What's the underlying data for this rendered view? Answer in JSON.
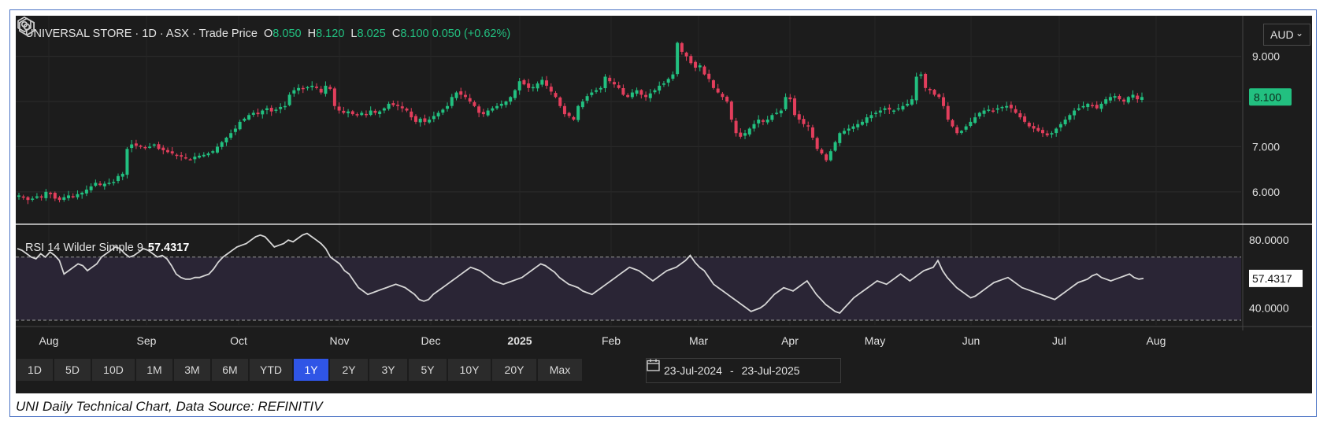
{
  "legend": {
    "symbol": "UNIVERSAL STORE",
    "interval": "1D",
    "exchange": "ASX",
    "price_type": "Trade Price",
    "o_label": "O",
    "o": "8.050",
    "h_label": "H",
    "h": "8.120",
    "l_label": "L",
    "l": "8.025",
    "c_label": "C",
    "c": "8.100",
    "change": "0.050",
    "change_pct": "(+0.62%)"
  },
  "currency": "AUD",
  "last_price_label": "8.100",
  "rsi_legend": {
    "name": "RSI 14 Wilder Simple 9",
    "value": "57.4317"
  },
  "rsi_last_label": "57.4317",
  "colors": {
    "up": "#22c080",
    "down": "#e23e5c",
    "background": "#1c1c1c",
    "active": "#2f55e6"
  },
  "timeframes": [
    "1D",
    "5D",
    "10D",
    "1M",
    "3M",
    "6M",
    "YTD",
    "1Y",
    "2Y",
    "3Y",
    "5Y",
    "10Y",
    "20Y",
    "Max"
  ],
  "active_timeframe": "1Y",
  "date_range": {
    "from": "23-Jul-2024",
    "sep": "-",
    "to": "23-Jul-2025"
  },
  "caption": "UNI Daily Technical Chart, Data Source: REFINITIV",
  "chart_data": [
    {
      "type": "candlestick",
      "x_labels": [
        "Aug",
        "Sep",
        "Oct",
        "Nov",
        "Dec",
        "2025",
        "Feb",
        "Mar",
        "Apr",
        "May",
        "Jun",
        "Jul",
        "Aug"
      ],
      "y_ticks": [
        "6.000",
        "7.000",
        "8.000",
        "9.000"
      ],
      "ylim": [
        5.3,
        9.9
      ],
      "close": [
        5.92,
        5.88,
        5.82,
        5.85,
        5.9,
        5.88,
        6.0,
        5.95,
        5.85,
        5.82,
        5.88,
        5.92,
        5.9,
        5.95,
        5.98,
        6.05,
        6.12,
        6.2,
        6.15,
        6.18,
        6.2,
        6.22,
        6.35,
        6.4,
        6.95,
        7.05,
        7.02,
        7.0,
        6.98,
        7.0,
        7.05,
        6.95,
        6.92,
        6.88,
        6.85,
        6.8,
        6.78,
        6.75,
        6.72,
        6.78,
        6.8,
        6.82,
        6.85,
        6.9,
        7.0,
        7.1,
        7.2,
        7.3,
        7.4,
        7.55,
        7.62,
        7.7,
        7.75,
        7.72,
        7.8,
        7.85,
        7.78,
        7.82,
        7.88,
        7.9,
        8.15,
        8.25,
        8.3,
        8.28,
        8.32,
        8.35,
        8.3,
        8.2,
        8.35,
        8.28,
        7.9,
        7.8,
        7.75,
        7.78,
        7.72,
        7.7,
        7.75,
        7.7,
        7.8,
        7.75,
        7.78,
        7.85,
        7.95,
        7.92,
        7.9,
        7.85,
        7.8,
        7.65,
        7.55,
        7.62,
        7.55,
        7.6,
        7.68,
        7.75,
        7.82,
        7.9,
        8.1,
        8.2,
        8.15,
        8.1,
        8.0,
        7.9,
        7.75,
        7.72,
        7.8,
        7.85,
        7.9,
        7.95,
        8.0,
        8.1,
        8.25,
        8.45,
        8.38,
        8.3,
        8.32,
        8.4,
        8.48,
        8.35,
        8.22,
        8.1,
        7.9,
        7.72,
        7.68,
        7.6,
        7.9,
        8.0,
        8.12,
        8.2,
        8.25,
        8.3,
        8.55,
        8.45,
        8.38,
        8.3,
        8.15,
        8.1,
        8.2,
        8.25,
        8.15,
        8.1,
        8.18,
        8.25,
        8.35,
        8.4,
        8.5,
        8.6,
        9.3,
        9.1,
        9.0,
        8.85,
        8.75,
        8.8,
        8.6,
        8.5,
        8.3,
        8.2,
        8.1,
        8.0,
        7.6,
        7.3,
        7.22,
        7.3,
        7.4,
        7.5,
        7.6,
        7.55,
        7.6,
        7.7,
        7.75,
        7.8,
        8.1,
        8.05,
        7.7,
        7.6,
        7.5,
        7.45,
        7.2,
        6.95,
        6.85,
        6.7,
        6.9,
        7.1,
        7.3,
        7.35,
        7.4,
        7.45,
        7.5,
        7.55,
        7.65,
        7.7,
        7.75,
        7.8,
        7.85,
        7.82,
        7.8,
        7.85,
        7.9,
        7.95,
        8.05,
        8.55,
        8.6,
        8.3,
        8.25,
        8.15,
        8.1,
        7.9,
        7.6,
        7.45,
        7.3,
        7.35,
        7.45,
        7.55,
        7.65,
        7.75,
        7.8,
        7.82,
        7.8,
        7.85,
        7.88,
        7.9,
        7.85,
        7.75,
        7.65,
        7.55,
        7.45,
        7.4,
        7.35,
        7.3,
        7.25,
        7.3,
        7.4,
        7.5,
        7.6,
        7.7,
        7.8,
        7.85,
        7.9,
        7.95,
        7.9,
        7.85,
        7.95,
        8.05,
        8.1,
        8.12,
        8.05,
        8.0,
        8.1,
        8.15,
        8.05,
        8.1
      ]
    },
    {
      "type": "line",
      "name": "RSI 14 Wilder Simple 9",
      "y_ticks": [
        "40.0000",
        "80.0000"
      ],
      "ylim": [
        30,
        88
      ],
      "overbought": 70,
      "oversold": 30,
      "values": [
        75,
        74,
        72,
        70,
        69,
        72,
        70,
        73,
        71,
        68,
        60,
        62,
        64,
        66,
        65,
        62,
        64,
        66,
        70,
        72,
        74,
        76,
        75,
        72,
        70,
        71,
        73,
        75,
        74,
        72,
        70,
        71,
        69,
        65,
        60,
        58,
        57,
        57,
        58,
        58,
        59,
        60,
        63,
        67,
        70,
        72,
        74,
        76,
        77,
        78,
        80,
        82,
        83,
        82,
        79,
        76,
        77,
        78,
        80,
        79,
        81,
        83,
        84,
        82,
        80,
        78,
        75,
        70,
        68,
        66,
        62,
        60,
        56,
        52,
        50,
        48,
        49,
        50,
        51,
        52,
        53,
        54,
        53,
        52,
        50,
        48,
        45,
        44,
        45,
        48,
        50,
        52,
        54,
        56,
        58,
        60,
        62,
        64,
        63,
        62,
        60,
        58,
        56,
        55,
        54,
        55,
        56,
        57,
        58,
        60,
        62,
        64,
        66,
        65,
        63,
        61,
        58,
        56,
        54,
        53,
        52,
        50,
        49,
        48,
        50,
        52,
        54,
        56,
        58,
        60,
        62,
        64,
        63,
        62,
        60,
        58,
        56,
        58,
        60,
        62,
        63,
        64,
        66,
        68,
        71,
        67,
        64,
        62,
        58,
        54,
        52,
        50,
        48,
        46,
        44,
        42,
        40,
        38,
        39,
        40,
        42,
        45,
        48,
        50,
        52,
        51,
        50,
        52,
        54,
        56,
        52,
        48,
        45,
        42,
        40,
        38,
        37,
        40,
        43,
        46,
        48,
        50,
        52,
        54,
        56,
        55,
        54,
        56,
        58,
        60,
        58,
        56,
        58,
        60,
        62,
        63,
        64,
        68,
        62,
        58,
        55,
        52,
        50,
        48,
        46,
        47,
        49,
        51,
        53,
        55,
        56,
        57,
        58,
        56,
        54,
        52,
        51,
        50,
        49,
        48,
        47,
        46,
        45,
        47,
        49,
        51,
        53,
        55,
        56,
        57,
        59,
        60,
        58,
        57,
        56,
        57,
        58,
        59,
        60,
        58,
        57,
        57.43
      ]
    }
  ]
}
